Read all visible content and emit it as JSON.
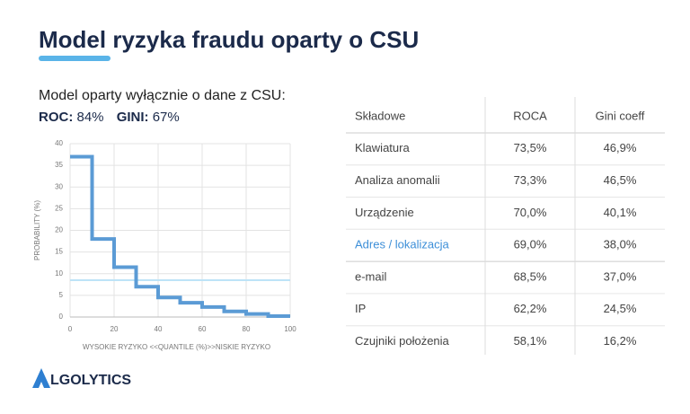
{
  "title": "Model ryzyka fraudu oparty o CSU",
  "subtitle": "Model oparty wyłącznie o dane z CSU:",
  "metrics": [
    {
      "label": "ROC:",
      "value": "84%"
    },
    {
      "label": "GINI:",
      "value": "67%"
    }
  ],
  "chart_data": {
    "type": "step",
    "x": [
      0,
      10,
      20,
      30,
      40,
      50,
      60,
      70,
      80,
      90
    ],
    "values": [
      37,
      18,
      11.5,
      7,
      4.5,
      3.3,
      2.3,
      1.3,
      0.7,
      0.2
    ],
    "color": "#5b9bd5",
    "reference_line": {
      "value": 8.5,
      "color": "#bde3f7"
    },
    "xlim": [
      0,
      100
    ],
    "xticks": [
      0,
      20,
      40,
      60,
      80,
      100
    ],
    "ylim": [
      0,
      40
    ],
    "yticks": [
      0,
      5,
      10,
      15,
      20,
      25,
      30,
      35,
      40
    ],
    "grid": true,
    "ylabel": "PROBABILITY (%)",
    "xlabel": "WYSOKIE RYZYKO <<QUANTILE (%)>>NISKIE RYZYKO"
  },
  "table": {
    "header": [
      "Składowe",
      "ROCA",
      "Gini coeff"
    ],
    "rows": [
      [
        "Klawiatura",
        "73,5%",
        "46,9%"
      ],
      [
        "Analiza anomalii",
        "73,3%",
        "46,5%"
      ],
      [
        "Urządzenie",
        "70,0%",
        "40,1%"
      ],
      [
        "Adres / lokalizacja",
        "69,0%",
        "38,0%"
      ],
      [
        "e-mail",
        "68,5%",
        "37,0%"
      ],
      [
        "IP",
        "62,2%",
        "24,5%"
      ],
      [
        "Czujniki położenia",
        "58,1%",
        "16,2%"
      ]
    ]
  },
  "logo": "LGOLYTICS"
}
